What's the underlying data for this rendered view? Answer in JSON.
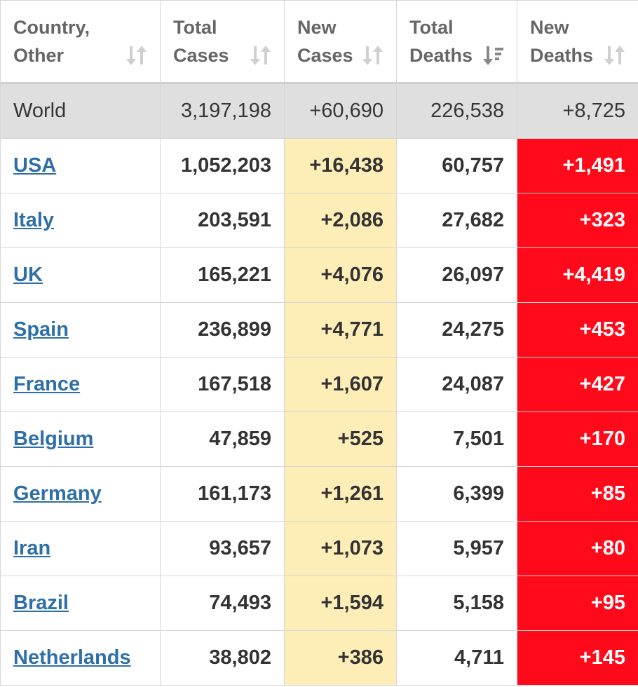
{
  "headers": [
    {
      "line1": "Country,",
      "line2": "Other",
      "sort_icon": "sort-both-icon"
    },
    {
      "line1": "Total",
      "line2": "Cases",
      "sort_icon": "sort-both-icon"
    },
    {
      "line1": "New",
      "line2": "Cases",
      "sort_icon": "sort-both-icon"
    },
    {
      "line1": "Total",
      "line2": "Deaths",
      "sort_icon": "sort-desc-icon"
    },
    {
      "line1": "New",
      "line2": "Deaths",
      "sort_icon": "sort-both-icon"
    }
  ],
  "world": {
    "country": "World",
    "total_cases": "3,197,198",
    "new_cases": "+60,690",
    "total_deaths": "226,538",
    "new_deaths": "+8,725"
  },
  "rows": [
    {
      "country": "USA",
      "total_cases": "1,052,203",
      "new_cases": "+16,438",
      "total_deaths": "60,757",
      "new_deaths": "+1,491"
    },
    {
      "country": "Italy",
      "total_cases": "203,591",
      "new_cases": "+2,086",
      "total_deaths": "27,682",
      "new_deaths": "+323"
    },
    {
      "country": "UK",
      "total_cases": "165,221",
      "new_cases": "+4,076",
      "total_deaths": "26,097",
      "new_deaths": "+4,419"
    },
    {
      "country": "Spain",
      "total_cases": "236,899",
      "new_cases": "+4,771",
      "total_deaths": "24,275",
      "new_deaths": "+453"
    },
    {
      "country": "France",
      "total_cases": "167,518",
      "new_cases": "+1,607",
      "total_deaths": "24,087",
      "new_deaths": "+427"
    },
    {
      "country": "Belgium",
      "total_cases": "47,859",
      "new_cases": "+525",
      "total_deaths": "7,501",
      "new_deaths": "+170"
    },
    {
      "country": "Germany",
      "total_cases": "161,173",
      "new_cases": "+1,261",
      "total_deaths": "6,399",
      "new_deaths": "+85"
    },
    {
      "country": "Iran",
      "total_cases": "93,657",
      "new_cases": "+1,073",
      "total_deaths": "5,957",
      "new_deaths": "+80"
    },
    {
      "country": "Brazil",
      "total_cases": "74,493",
      "new_cases": "+1,594",
      "total_deaths": "5,158",
      "new_deaths": "+95"
    },
    {
      "country": "Netherlands",
      "total_cases": "38,802",
      "new_cases": "+386",
      "total_deaths": "4,711",
      "new_deaths": "+145"
    }
  ],
  "colors": {
    "link": "#2f6fa7",
    "new_cases_highlight": "#fdeeb8",
    "new_deaths_highlight": "#ff0a1a",
    "world_row_bg": "#dfdfdf",
    "header_text": "#666666"
  }
}
